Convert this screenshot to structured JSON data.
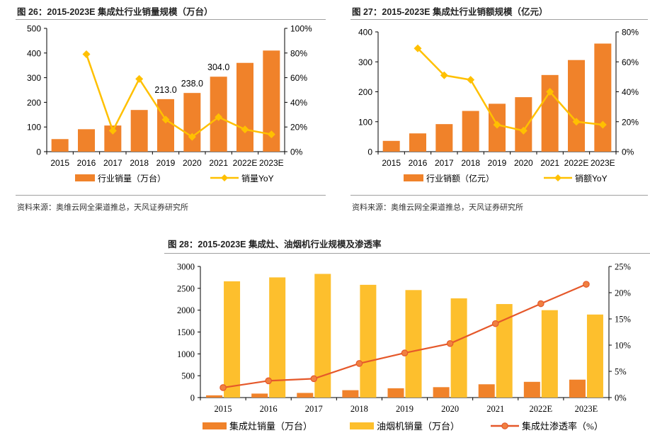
{
  "fig26": {
    "title": "图 26：2015-2023E 集成灶行业销量规模（万台）",
    "source": "资料来源：奥维云网全渠道推总，天风证券研究所"
  },
  "fig27": {
    "title": "图 27：2015-2023E 集成灶行业销额规模（亿元）",
    "source": "资料来源：奥维云网全渠道推总，天风证券研究所"
  },
  "fig28": {
    "title": "图 28：2015-2023E 集成灶、油烟机行业规模及渗透率"
  },
  "colors": {
    "orange": "#F0822A",
    "yellow": "#FFC000",
    "yoy_line": "#FFC000",
    "yellow_bar": "#FDBF2D",
    "penetration_line": "#E5582A",
    "penetration_marker": "#F08040"
  },
  "chart_data": [
    {
      "id": "fig26",
      "type": "bar",
      "categories": [
        "2015",
        "2016",
        "2017",
        "2018",
        "2019",
        "2020",
        "2021",
        "2022E",
        "2023E"
      ],
      "series": [
        {
          "name": "行业销量（万台）",
          "type": "bar",
          "axis": "left",
          "values": [
            51,
            91,
            106,
            169,
            213,
            238,
            304,
            360,
            410
          ],
          "data_labels": [
            null,
            null,
            null,
            null,
            "213.0",
            "238.0",
            "304.0",
            null,
            null
          ]
        },
        {
          "name": "销量YoY",
          "type": "line",
          "axis": "right",
          "marker": "diamond",
          "values": [
            null,
            0.79,
            0.17,
            0.59,
            0.26,
            0.12,
            0.28,
            0.18,
            0.14
          ]
        }
      ],
      "left_axis": {
        "ylim": [
          0,
          500
        ],
        "ticks": [
          "0",
          "100",
          "200",
          "300",
          "400",
          "500"
        ]
      },
      "right_axis": {
        "ylim": [
          0,
          1.0
        ],
        "ticks": [
          "0%",
          "20%",
          "40%",
          "60%",
          "80%",
          "100%"
        ]
      },
      "legend_position": "bottom",
      "grid": false
    },
    {
      "id": "fig27",
      "type": "bar",
      "categories": [
        "2015",
        "2016",
        "2017",
        "2018",
        "2019",
        "2020",
        "2021",
        "2022E",
        "2023E"
      ],
      "series": [
        {
          "name": "行业销额（亿元）",
          "type": "bar",
          "axis": "left",
          "values": [
            36,
            61,
            92,
            136,
            160,
            182,
            256,
            306,
            361
          ]
        },
        {
          "name": "销额YoY",
          "type": "line",
          "axis": "right",
          "marker": "diamond",
          "values": [
            null,
            0.69,
            0.51,
            0.48,
            0.18,
            0.14,
            0.4,
            0.2,
            0.18
          ]
        }
      ],
      "left_axis": {
        "ylim": [
          0,
          400
        ],
        "ticks": [
          "0",
          "100",
          "200",
          "300",
          "400"
        ]
      },
      "right_axis": {
        "ylim": [
          0,
          0.8
        ],
        "ticks": [
          "0%",
          "20%",
          "40%",
          "60%",
          "80%"
        ]
      },
      "legend_position": "bottom",
      "grid": false
    },
    {
      "id": "fig28",
      "type": "bar",
      "categories": [
        "2015",
        "2016",
        "2017",
        "2018",
        "2019",
        "2020",
        "2021",
        "2022E",
        "2023E"
      ],
      "series": [
        {
          "name": "集成灶销量（万台）",
          "type": "bar",
          "axis": "left",
          "values": [
            51,
            91,
            106,
            169,
            213,
            238,
            304,
            360,
            410
          ]
        },
        {
          "name": "油烟机销量（万台）",
          "type": "bar",
          "axis": "left",
          "values": [
            2660,
            2750,
            2830,
            2580,
            2460,
            2270,
            2140,
            2000,
            1900
          ]
        },
        {
          "name": "集成灶渗透率（%）",
          "type": "line",
          "axis": "right",
          "marker": "circle",
          "values": [
            0.019,
            0.032,
            0.036,
            0.065,
            0.085,
            0.103,
            0.141,
            0.179,
            0.216
          ]
        }
      ],
      "left_axis": {
        "ylim": [
          0,
          3000
        ],
        "ticks": [
          "0",
          "500",
          "1000",
          "1500",
          "2000",
          "2500",
          "3000"
        ]
      },
      "right_axis": {
        "ylim": [
          0,
          0.25
        ],
        "ticks": [
          "0%",
          "5%",
          "10%",
          "15%",
          "20%",
          "25%"
        ]
      },
      "legend_position": "bottom",
      "grid": false
    }
  ]
}
